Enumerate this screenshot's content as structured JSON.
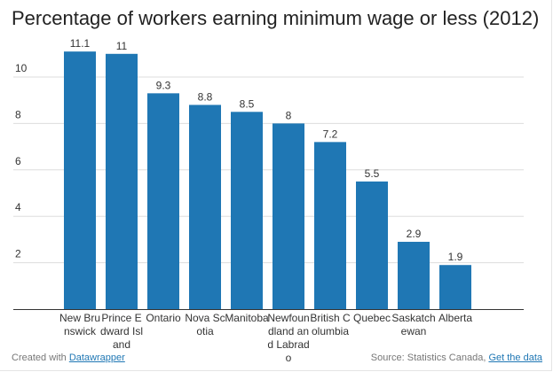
{
  "chart_data": {
    "type": "bar",
    "title": "Percentage of workers earning minimum wage or less (2012)",
    "categories": [
      "New Brunswick",
      "Prince Edward Island",
      "Ontario",
      "Nova Scotia",
      "Manitoba",
      "Newfoundland and Labrado",
      "British Columbia",
      "Quebec",
      "Saskatchewan",
      "Alberta"
    ],
    "values": [
      11.1,
      11,
      9.3,
      8.8,
      8.5,
      8,
      7.2,
      5.5,
      2.9,
      1.9
    ],
    "value_labels": [
      "11.1",
      "11",
      "9.3",
      "8.8",
      "8.5",
      "8",
      "7.2",
      "5.5",
      "2.9",
      "1.9"
    ],
    "yticks": [
      2,
      4,
      6,
      8,
      10
    ],
    "ylim": [
      0,
      11.5
    ],
    "grid": true,
    "bar_color": "#1f77b4",
    "xlabel": "",
    "ylabel": ""
  },
  "footer": {
    "created_prefix": "Created with ",
    "created_link": "Datawrapper",
    "source_prefix": "Source: Statistics Canada, ",
    "source_link": "Get the data"
  }
}
